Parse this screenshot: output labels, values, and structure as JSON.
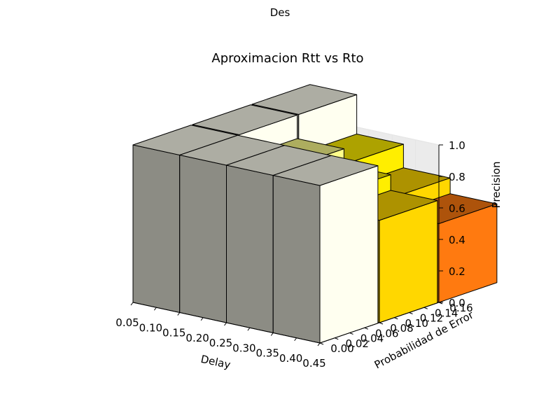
{
  "suptitle": "Des",
  "chart_data": {
    "type": "bar3d",
    "title": "Aproximacion Rtt vs Rto",
    "xlabel": "Delay",
    "ylabel": "Probabilidad de Error",
    "zlabel": "Precision",
    "xlim": [
      0.05,
      0.45
    ],
    "ylim": [
      0.0,
      0.16
    ],
    "zlim": [
      0.0,
      1.0
    ],
    "x_ticks": [
      "0.05",
      "0.10",
      "0.15",
      "0.20",
      "0.25",
      "0.30",
      "0.35",
      "0.40",
      "0.45"
    ],
    "y_ticks": [
      "0.00",
      "0.02",
      "0.04",
      "0.06",
      "0.08",
      "0.10",
      "0.12",
      "0.14",
      "0.16"
    ],
    "z_ticks": [
      "0.0",
      "0.2",
      "0.4",
      "0.6",
      "0.8",
      "1.0"
    ],
    "grid": true,
    "bars": [
      {
        "delay": 0.05,
        "error": 0.16,
        "precision": 1.0
      },
      {
        "delay": 0.15,
        "error": 0.16,
        "precision": 0.75
      },
      {
        "delay": 0.25,
        "error": 0.16,
        "precision": 0.6
      },
      {
        "delay": 0.35,
        "error": 0.16,
        "precision": 0.5
      },
      {
        "delay": 0.05,
        "error": 0.08,
        "precision": 1.0
      },
      {
        "delay": 0.15,
        "error": 0.08,
        "precision": 0.85
      },
      {
        "delay": 0.25,
        "error": 0.08,
        "precision": 0.75
      },
      {
        "delay": 0.35,
        "error": 0.08,
        "precision": 0.65
      },
      {
        "delay": 0.05,
        "error": 0.0,
        "precision": 1.0
      },
      {
        "delay": 0.15,
        "error": 0.0,
        "precision": 1.0
      },
      {
        "delay": 0.25,
        "error": 0.0,
        "precision": 1.0
      },
      {
        "delay": 0.35,
        "error": 0.0,
        "precision": 1.0
      }
    ]
  }
}
